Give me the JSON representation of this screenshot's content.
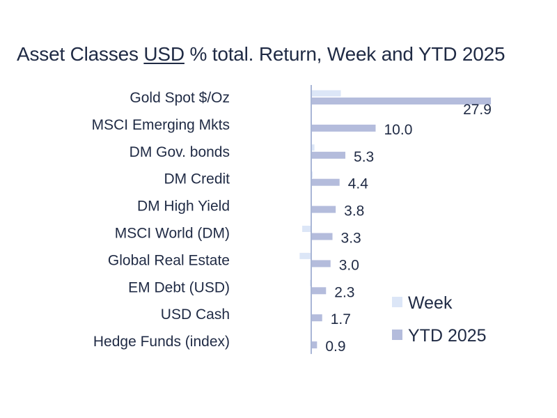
{
  "title": {
    "prefix": "Asset Classes ",
    "underlined": "USD",
    "suffix": " % total. Return, Week and YTD 2025"
  },
  "colors": {
    "week": "#dce6f7",
    "ytd": "#b4bcdc",
    "axis": "#a9b6d6",
    "text": "#1f2a44"
  },
  "chart_data": {
    "type": "bar",
    "orientation": "horizontal",
    "categories": [
      "Gold Spot   $/Oz",
      "MSCI Emerging Mkts",
      "DM Gov. bonds",
      "DM Credit",
      "DM High Yield",
      "MSCI World (DM)",
      "Global Real Estate",
      "EM Debt (USD)",
      "USD Cash",
      "Hedge Funds (index)"
    ],
    "series": [
      {
        "name": "Week",
        "values": [
          4.6,
          0.0,
          0.5,
          0.2,
          0.1,
          -1.4,
          -1.8,
          -0.2,
          0.0,
          0.0
        ]
      },
      {
        "name": "YTD 2025",
        "values": [
          27.9,
          10.0,
          5.3,
          4.4,
          3.8,
          3.3,
          3.0,
          2.3,
          1.7,
          0.9
        ]
      }
    ],
    "data_labels": [
      "27.9",
      "10.0",
      "5.3",
      "4.4",
      "3.8",
      "3.3",
      "3.0",
      "2.3",
      "1.7",
      "0.9"
    ],
    "legend": [
      "Week",
      "YTD 2025"
    ],
    "legend_position": "bottom-right",
    "grid": false,
    "xlim": [
      -2,
      28
    ]
  }
}
